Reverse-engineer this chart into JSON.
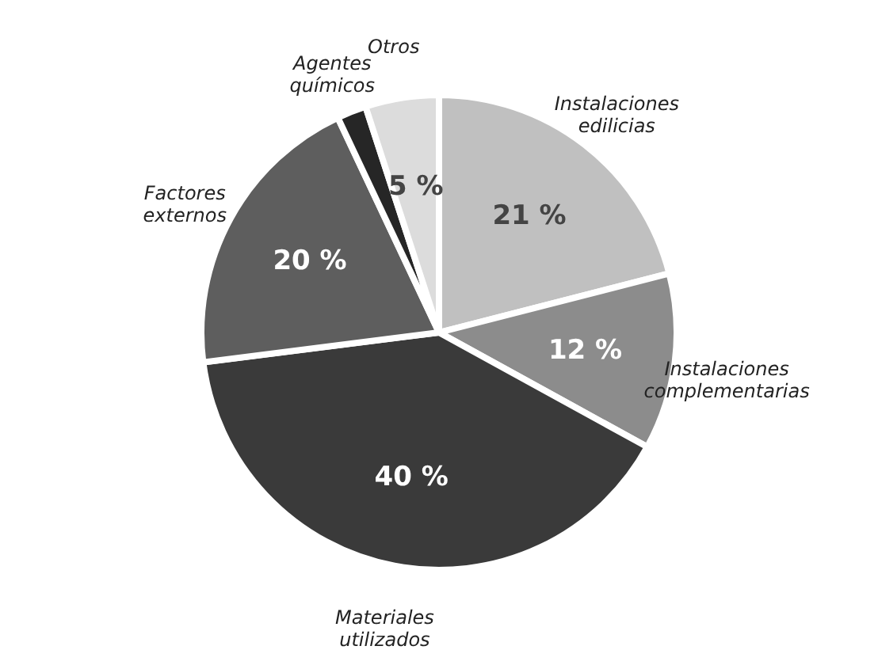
{
  "chart_data": {
    "type": "pie",
    "categories": [
      "Instalaciones edilicias",
      "Instalaciones complementarias",
      "Materiales utilizados",
      "Factores externos",
      "Agentes químicos",
      "Otros"
    ],
    "values": [
      21,
      12,
      40,
      20,
      2,
      5
    ],
    "colors": [
      "#c0c0c0",
      "#8c8c8c",
      "#3a3a3a",
      "#5e5e5e",
      "#262626",
      "#dcdcdc"
    ],
    "value_labels": [
      "21 %",
      "12 %",
      "40 %",
      "20 %",
      null,
      "5 %"
    ],
    "legend": false
  }
}
